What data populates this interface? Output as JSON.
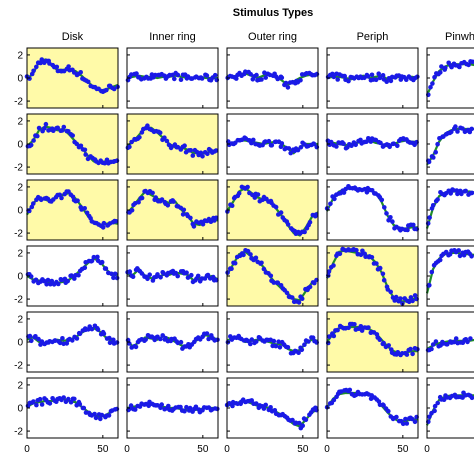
{
  "chart_data": {
    "type": "scatter",
    "title": "Stimulus Types",
    "columns": [
      "Disk",
      "Inner ring",
      "Outer ring",
      "Periph",
      "Pinwh"
    ],
    "rows": 6,
    "y_ticks": [
      2,
      0,
      -2
    ],
    "x_ticks": [
      0,
      50
    ],
    "xlim": [
      0,
      60
    ],
    "ylim": [
      -2.6,
      2.6
    ],
    "highlight_color": "#fffaa8",
    "dot_color": "#1a1ae6",
    "fit_color": "#1e8c28",
    "highlighted_cells": [
      [
        0,
        0
      ],
      [
        1,
        0
      ],
      [
        1,
        1
      ],
      [
        2,
        0
      ],
      [
        2,
        1
      ],
      [
        2,
        2
      ],
      [
        3,
        2
      ],
      [
        3,
        3
      ],
      [
        4,
        3
      ]
    ],
    "panels": [
      [
        {
          "x": [
            0,
            4,
            8,
            12,
            16,
            20,
            24,
            28,
            32,
            36,
            40,
            44,
            48,
            52,
            56,
            60
          ],
          "y": [
            -0.1,
            0.4,
            1.4,
            1.6,
            1.1,
            0.7,
            0.7,
            0.8,
            0.6,
            0.2,
            -0.3,
            -0.8,
            -1.1,
            -1.0,
            -0.8,
            -0.6
          ]
        },
        {
          "x": [
            0,
            4,
            8,
            12,
            16,
            20,
            24,
            28,
            32,
            36,
            40,
            44,
            48,
            52,
            56,
            60
          ],
          "y": [
            0.0,
            0.1,
            0.2,
            0.1,
            0.1,
            0.0,
            0.1,
            0.1,
            0.2,
            0.1,
            0.0,
            0.0,
            0.1,
            0.0,
            0.0,
            0.0
          ]
        },
        {
          "x": [
            0,
            4,
            8,
            12,
            16,
            20,
            24,
            28,
            32,
            36,
            40,
            44,
            48,
            52,
            56,
            60
          ],
          "y": [
            0.2,
            0.1,
            0.3,
            0.4,
            0.2,
            0.0,
            0.2,
            0.3,
            0.2,
            -0.2,
            -0.6,
            -0.3,
            0.0,
            0.2,
            0.3,
            0.2
          ]
        },
        {
          "x": [
            0,
            4,
            8,
            12,
            16,
            20,
            24,
            28,
            32,
            36,
            40,
            44,
            48,
            52,
            56,
            60
          ],
          "y": [
            0.0,
            0.1,
            0.1,
            0.0,
            -0.1,
            0.1,
            0.2,
            0.0,
            0.1,
            0.2,
            -0.1,
            0.0,
            0.1,
            0.0,
            0.1,
            0.0
          ]
        },
        {
          "x": [
            0,
            4,
            8,
            12,
            16,
            20,
            24,
            28,
            32,
            36
          ],
          "y": [
            -1.5,
            -0.3,
            0.6,
            1.0,
            1.2,
            1.2,
            1.2,
            1.2,
            1.1,
            1.1
          ]
        }
      ],
      [
        {
          "x": [
            0,
            4,
            8,
            12,
            16,
            20,
            24,
            28,
            32,
            36,
            40,
            44,
            48,
            52,
            56,
            60
          ],
          "y": [
            -0.2,
            0.3,
            1.2,
            1.5,
            1.4,
            1.2,
            1.3,
            0.8,
            0.2,
            -0.3,
            -1.0,
            -1.5,
            -1.6,
            -1.5,
            -1.6,
            -1.5
          ]
        },
        {
          "x": [
            0,
            4,
            8,
            12,
            16,
            20,
            24,
            28,
            32,
            36,
            40,
            44,
            48,
            52,
            56,
            60
          ],
          "y": [
            -0.2,
            0.2,
            0.8,
            1.4,
            1.4,
            1.0,
            0.5,
            0.0,
            -0.3,
            -0.3,
            -0.5,
            -0.8,
            -0.8,
            -0.8,
            -0.6,
            -0.6
          ]
        },
        {
          "x": [
            0,
            4,
            8,
            12,
            16,
            20,
            24,
            28,
            32,
            36,
            40,
            44,
            48,
            52,
            56,
            60
          ],
          "y": [
            0.0,
            0.1,
            0.3,
            0.3,
            0.2,
            0.1,
            0.0,
            0.1,
            0.2,
            0.0,
            -0.4,
            -0.8,
            -0.3,
            0.0,
            0.0,
            0.0
          ]
        },
        {
          "x": [
            0,
            4,
            8,
            12,
            16,
            20,
            24,
            28,
            32,
            36,
            40,
            44,
            48,
            52,
            56,
            60
          ],
          "y": [
            0.1,
            0.1,
            0.0,
            -0.1,
            0.0,
            0.1,
            0.2,
            0.3,
            0.1,
            0.0,
            -0.2,
            0.0,
            0.2,
            0.3,
            0.2,
            0.2
          ]
        },
        {
          "x": [
            0,
            4,
            8,
            12,
            16,
            20,
            24,
            28,
            32,
            36
          ],
          "y": [
            -1.8,
            -1.0,
            0.2,
            0.9,
            1.2,
            1.3,
            1.3,
            1.3,
            1.3,
            1.3
          ]
        }
      ],
      [
        {
          "x": [
            0,
            4,
            8,
            12,
            16,
            20,
            24,
            28,
            32,
            36,
            40,
            44,
            48,
            52,
            56,
            60
          ],
          "y": [
            -0.4,
            0.6,
            1.0,
            0.9,
            0.7,
            1.3,
            1.3,
            1.5,
            1.0,
            0.3,
            -0.5,
            -1.1,
            -1.3,
            -1.2,
            -1.1,
            -1.2
          ]
        },
        {
          "x": [
            0,
            4,
            8,
            12,
            16,
            20,
            24,
            28,
            32,
            36,
            40,
            44,
            48,
            52,
            56,
            60
          ],
          "y": [
            -0.3,
            0.3,
            1.0,
            1.6,
            1.3,
            1.0,
            0.8,
            0.6,
            0.7,
            0.0,
            -0.5,
            -1.2,
            -1.3,
            -1.0,
            -0.8,
            -0.9
          ]
        },
        {
          "x": [
            0,
            4,
            8,
            12,
            16,
            20,
            24,
            28,
            32,
            36,
            40,
            44,
            48,
            52,
            56,
            60
          ],
          "y": [
            -0.1,
            0.7,
            1.6,
            1.9,
            1.5,
            1.1,
            0.9,
            0.8,
            0.2,
            -0.5,
            -1.3,
            -2.0,
            -2.2,
            -1.5,
            -0.6,
            -0.2
          ]
        },
        {
          "x": [
            0,
            4,
            8,
            12,
            16,
            20,
            24,
            28,
            32,
            36,
            40,
            44,
            48,
            52,
            56,
            60
          ],
          "y": [
            -0.1,
            1.0,
            1.6,
            1.8,
            1.9,
            1.8,
            1.8,
            1.7,
            1.5,
            0.7,
            -0.5,
            -1.3,
            -1.6,
            -1.6,
            -1.5,
            -1.5
          ]
        },
        {
          "x": [
            0,
            4,
            8,
            12,
            16,
            20,
            24,
            28,
            32,
            36
          ],
          "y": [
            -1.6,
            0.2,
            1.2,
            1.5,
            1.6,
            1.6,
            1.6,
            1.6,
            1.5,
            1.5
          ]
        }
      ],
      [
        {
          "x": [
            0,
            4,
            8,
            12,
            16,
            20,
            24,
            28,
            32,
            36,
            40,
            44,
            48,
            52,
            56,
            60
          ],
          "y": [
            0.0,
            -0.3,
            -0.4,
            -0.5,
            -0.6,
            -0.6,
            -0.5,
            -0.3,
            0.1,
            0.6,
            1.1,
            1.5,
            1.3,
            0.6,
            0.1,
            0.1
          ]
        },
        {
          "x": [
            0,
            4,
            8,
            12,
            16,
            20,
            24,
            28,
            32,
            36,
            40,
            44,
            48,
            52,
            56,
            60
          ],
          "y": [
            0.2,
            0.1,
            0.6,
            0.0,
            -0.2,
            -0.1,
            0.1,
            0.1,
            0.3,
            0.2,
            0.1,
            -0.4,
            -0.2,
            -0.1,
            0.0,
            -0.3
          ]
        },
        {
          "x": [
            0,
            4,
            8,
            12,
            16,
            20,
            24,
            28,
            32,
            36,
            40,
            44,
            48,
            52,
            56,
            60
          ],
          "y": [
            0.1,
            1.0,
            1.9,
            2.1,
            1.7,
            1.3,
            0.8,
            0.0,
            -0.6,
            -1.1,
            -1.5,
            -2.0,
            -2.1,
            -1.3,
            -0.6,
            -0.3
          ]
        },
        {
          "x": [
            0,
            4,
            8,
            12,
            16,
            20,
            24,
            28,
            32,
            36,
            40,
            44,
            48,
            52,
            56,
            60
          ],
          "y": [
            -0.2,
            1.1,
            2.1,
            2.2,
            2.1,
            2.0,
            1.9,
            1.7,
            1.2,
            0.3,
            -1.0,
            -1.9,
            -2.2,
            -2.2,
            -2.0,
            -1.9
          ]
        },
        {
          "x": [
            0,
            4,
            8,
            12,
            16,
            20,
            24,
            28,
            32,
            36
          ],
          "y": [
            -1.5,
            0.6,
            1.5,
            1.9,
            2.0,
            2.0,
            1.9,
            1.9,
            1.8,
            1.8
          ]
        }
      ],
      [
        {
          "x": [
            0,
            4,
            8,
            12,
            16,
            20,
            24,
            28,
            32,
            36,
            40,
            44,
            48,
            52,
            56,
            60
          ],
          "y": [
            0.2,
            0.4,
            0.0,
            -0.1,
            0.0,
            0.2,
            0.1,
            0.2,
            0.4,
            0.8,
            1.1,
            1.2,
            0.9,
            0.4,
            0.0,
            -0.1
          ]
        },
        {
          "x": [
            0,
            4,
            8,
            12,
            16,
            20,
            24,
            28,
            32,
            36,
            40,
            44,
            48,
            52,
            56,
            60
          ],
          "y": [
            0.1,
            -0.4,
            0.0,
            0.4,
            0.3,
            0.2,
            0.5,
            0.3,
            0.0,
            -0.3,
            -0.4,
            0.0,
            0.3,
            0.6,
            0.4,
            0.2
          ]
        },
        {
          "x": [
            0,
            4,
            8,
            12,
            16,
            20,
            24,
            28,
            32,
            36,
            40,
            44,
            48,
            52,
            56,
            60
          ],
          "y": [
            0.1,
            0.4,
            0.3,
            0.0,
            0.1,
            0.2,
            0.1,
            0.0,
            -0.2,
            -0.2,
            -0.6,
            -0.8,
            -0.7,
            -0.1,
            0.2,
            0.1
          ]
        },
        {
          "x": [
            0,
            4,
            8,
            12,
            16,
            20,
            24,
            28,
            32,
            36,
            40,
            44,
            48,
            52,
            56,
            60
          ],
          "y": [
            0.0,
            0.7,
            1.2,
            1.3,
            1.3,
            1.3,
            1.2,
            1.1,
            0.8,
            0.2,
            -0.4,
            -0.8,
            -1.0,
            -0.9,
            -0.8,
            -0.8
          ]
        },
        {
          "x": [
            0,
            4,
            8,
            12,
            16,
            20,
            24,
            28,
            32,
            36
          ],
          "y": [
            -0.6,
            -0.3,
            -0.1,
            0.0,
            0.1,
            0.1,
            0.1,
            0.1,
            0.2,
            0.2
          ]
        }
      ],
      [
        {
          "x": [
            0,
            4,
            8,
            12,
            16,
            20,
            24,
            28,
            32,
            36,
            40,
            44,
            48,
            52,
            56,
            60
          ],
          "y": [
            0.1,
            0.4,
            0.5,
            0.6,
            0.6,
            0.7,
            0.8,
            0.6,
            0.5,
            0.1,
            -0.3,
            -0.6,
            -0.8,
            -0.6,
            -0.3,
            0.0
          ]
        },
        {
          "x": [
            0,
            4,
            8,
            12,
            16,
            20,
            24,
            28,
            32,
            36,
            40,
            44,
            48,
            52,
            56,
            60
          ],
          "y": [
            0.0,
            0.1,
            0.2,
            0.4,
            0.3,
            0.2,
            0.1,
            0.0,
            0.0,
            -0.1,
            -0.2,
            -0.2,
            -0.1,
            0.0,
            0.0,
            0.0
          ]
        },
        {
          "x": [
            0,
            4,
            8,
            12,
            16,
            20,
            24,
            28,
            32,
            36,
            40,
            44,
            48,
            52,
            56,
            60
          ],
          "y": [
            0.2,
            0.3,
            0.5,
            0.6,
            0.4,
            0.2,
            0.1,
            0.0,
            -0.3,
            -0.6,
            -1.0,
            -1.4,
            -1.6,
            -1.0,
            -0.4,
            -0.1
          ]
        },
        {
          "x": [
            0,
            4,
            8,
            12,
            16,
            20,
            24,
            28,
            32,
            36,
            40,
            44,
            48,
            52,
            56,
            60
          ],
          "y": [
            0.0,
            0.8,
            1.2,
            1.3,
            1.3,
            1.3,
            1.2,
            1.1,
            0.8,
            0.2,
            -0.4,
            -0.9,
            -1.2,
            -1.1,
            -1.0,
            -1.0
          ]
        },
        {
          "x": [
            0,
            4,
            8,
            12,
            16,
            20,
            24,
            28,
            32,
            36
          ],
          "y": [
            -1.5,
            -0.2,
            0.7,
            1.0,
            1.1,
            1.1,
            1.1,
            1.1,
            1.1,
            1.1
          ]
        }
      ]
    ]
  }
}
